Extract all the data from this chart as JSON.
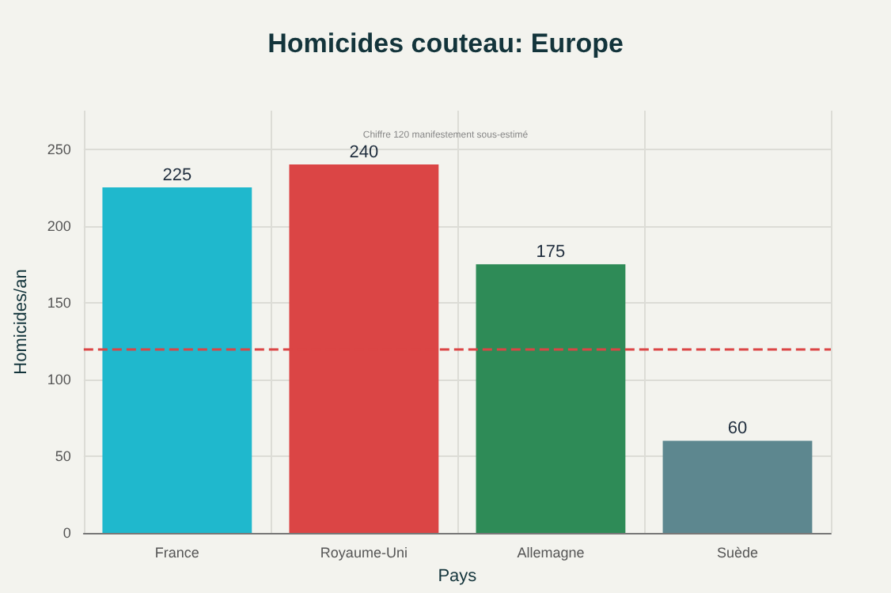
{
  "chart_data": {
    "type": "bar",
    "title": "Homicides couteau: Europe",
    "xlabel": "Pays",
    "ylabel": "Homicides/an",
    "categories": [
      "France",
      "Royaume-Uni",
      "Allemagne",
      "Suède"
    ],
    "values": [
      225,
      240,
      175,
      60
    ],
    "colors": [
      "#1fb8cd",
      "#db4545",
      "#2e8b57",
      "#5d878f"
    ],
    "data_labels": true,
    "ylim": [
      0,
      275
    ],
    "yticks": [
      0,
      50,
      100,
      150,
      200,
      250
    ],
    "grid": true,
    "ref_lines": [
      {
        "axis": "y",
        "value": 120,
        "color": "#db4545",
        "line_style": "dashed"
      }
    ],
    "annotations": [
      "Chiffre 120 manifestement sous-estimé"
    ]
  }
}
